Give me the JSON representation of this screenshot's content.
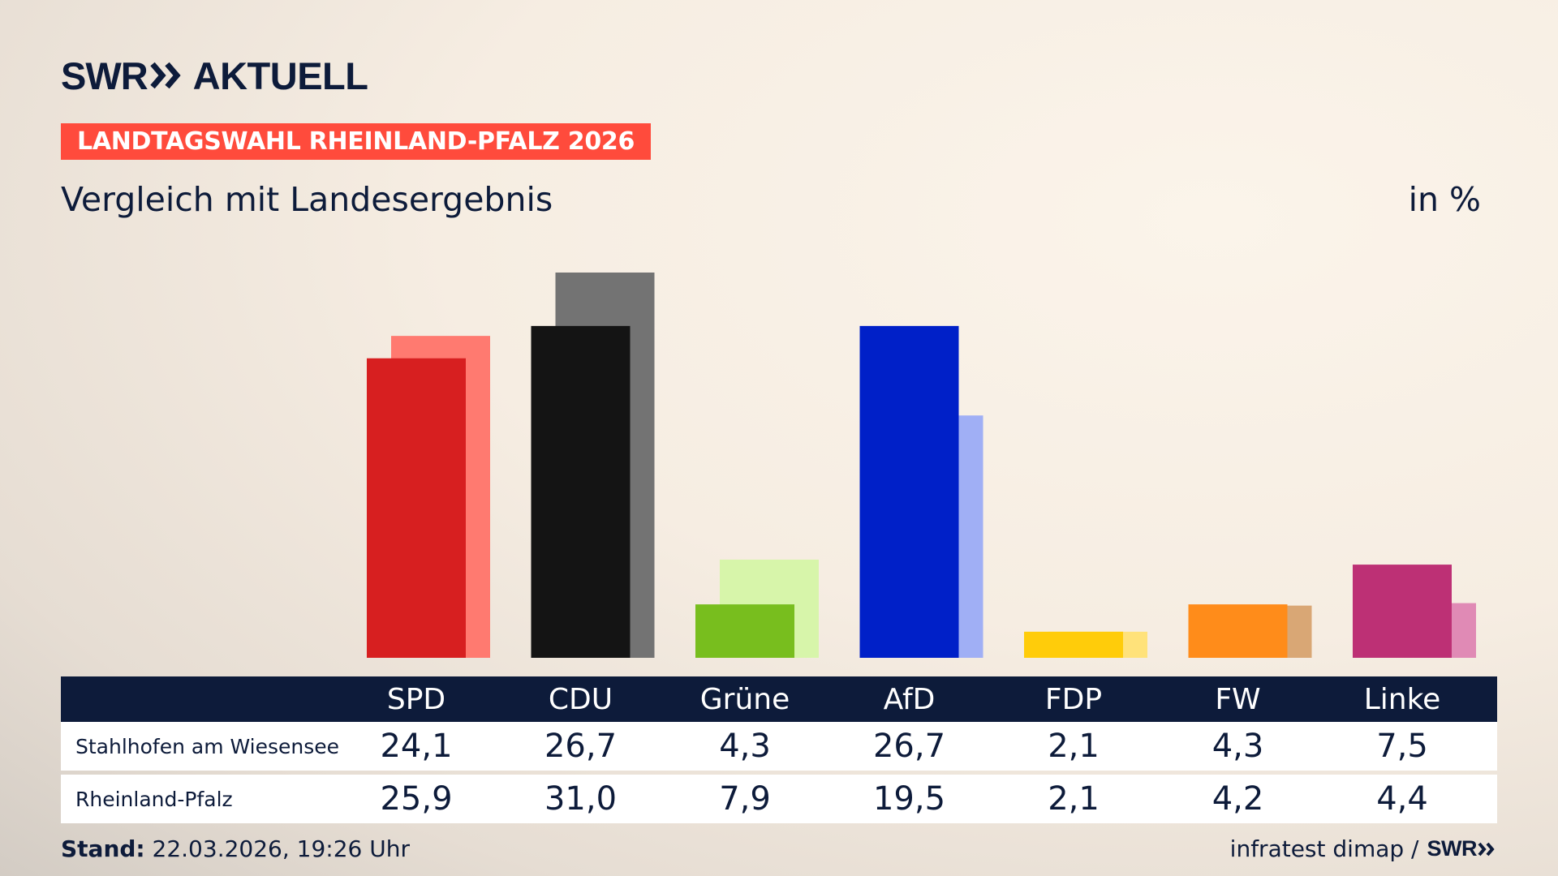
{
  "brand": {
    "swr": "SWR",
    "aktuell": "AKTUELL",
    "icon": "double-chevron-right-icon"
  },
  "tag": "LANDTAGSWAHL RHEINLAND-PFALZ 2026",
  "subtitle": "Vergleich mit Landesergebnis",
  "unit": "in %",
  "table": {
    "row_labels": [
      "Stahlhofen am Wiesensee",
      "Rheinland-Pfalz"
    ]
  },
  "footer": {
    "stand_label": "Stand:",
    "stand_value": "22.03.2026, 19:26 Uhr",
    "source": "infratest dimap /",
    "source_brand": "SWR"
  },
  "chart_data": {
    "type": "bar",
    "categories": [
      "SPD",
      "CDU",
      "Grüne",
      "AfD",
      "FDP",
      "FW",
      "Linke"
    ],
    "series": [
      {
        "name": "Stahlhofen am Wiesensee",
        "values": [
          24.1,
          26.7,
          4.3,
          26.7,
          2.1,
          4.3,
          7.5
        ],
        "labels": [
          "24,1",
          "26,7",
          "4,3",
          "26,7",
          "2,1",
          "4,3",
          "7,5"
        ]
      },
      {
        "name": "Rheinland-Pfalz",
        "values": [
          25.9,
          31.0,
          7.9,
          19.5,
          2.1,
          4.2,
          4.4
        ],
        "labels": [
          "25,9",
          "31,0",
          "7,9",
          "19,5",
          "2,1",
          "4,2",
          "4,4"
        ]
      }
    ],
    "colors_local": [
      "#d71f20",
      "#141414",
      "#78be1e",
      "#0020c8",
      "#ffcc0a",
      "#ff8c1a",
      "#bd3075"
    ],
    "colors_state": [
      "#ff7a70",
      "#737373",
      "#d7f5aa",
      "#a0aff5",
      "#ffe27a",
      "#d9a775",
      "#e08ab5"
    ],
    "ylim": [
      0,
      31.0
    ],
    "grid": false,
    "legend": "none"
  }
}
